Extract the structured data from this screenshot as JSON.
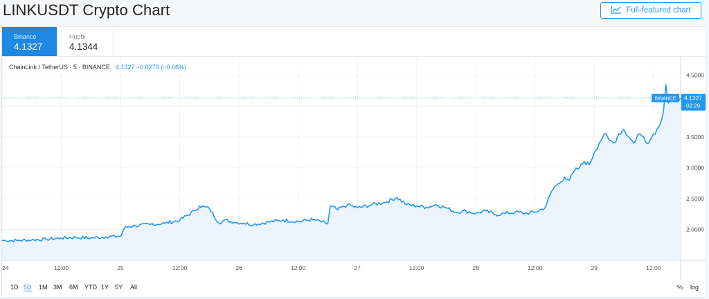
{
  "title": "LINKUSDT Crypto Chart",
  "full_featured_label": "Full-featured chart",
  "tabs": [
    {
      "name": "Binance",
      "price": "4.1327",
      "active": true
    },
    {
      "name": "Huobi",
      "price": "4.1344",
      "active": false
    }
  ],
  "legend": {
    "symbol": "ChainLink / TetherUS · 5 · BINANCE",
    "values": "4.1327  −0.0273 (−0.66%)"
  },
  "price_label": {
    "exchange": "BINANCE",
    "price": "4.1327",
    "countdown": "02:29"
  },
  "colors": {
    "accent": "#2196f3",
    "line": "#2196f3",
    "area": "#eaf4fd"
  },
  "range_buttons": [
    "1D",
    "5D",
    "1M",
    "3M",
    "6M",
    "YTD",
    "1Y",
    "5Y",
    "All"
  ],
  "range_active": "5D",
  "scale_toggles": {
    "percent": "%",
    "log": "log"
  },
  "chart_data": {
    "type": "area",
    "ylim": [
      1.5,
      4.8
    ],
    "y_ticks": [
      "4.5000",
      "4.0000",
      "3.5000",
      "3.0000",
      "2.5000",
      "2.0000"
    ],
    "y_tick_values": [
      4.5,
      4.0,
      3.5,
      3.0,
      2.5,
      2.0
    ],
    "x_ticks": [
      "24",
      "12:00",
      "25",
      "12:00",
      "26",
      "12:00",
      "27",
      "12:00",
      "28",
      "12:00",
      "29",
      "12:00"
    ],
    "x_tick_hours": [
      0,
      12,
      24,
      36,
      48,
      60,
      72,
      84,
      96,
      108,
      120,
      132
    ],
    "x_range_hours": [
      0,
      137.5
    ],
    "series": [
      {
        "hours": [
          0,
          3,
          6,
          9,
          12,
          15,
          18,
          21,
          24,
          25,
          27,
          30,
          33,
          36,
          39,
          40,
          42,
          44,
          45,
          47,
          49,
          51,
          54,
          57,
          60,
          63,
          66,
          66.5,
          68,
          70,
          72,
          75,
          78,
          80,
          82,
          84,
          86,
          88,
          90,
          92,
          94,
          96,
          98,
          100,
          102,
          104,
          106,
          108,
          110,
          111,
          112,
          113,
          114,
          115,
          116,
          117,
          118,
          119,
          120,
          121,
          122,
          123,
          124,
          125,
          126,
          127,
          128,
          129,
          130,
          131,
          132,
          133,
          134,
          134.5,
          135,
          136,
          137,
          137.5
        ],
        "values": [
          1.82,
          1.82,
          1.83,
          1.84,
          1.86,
          1.87,
          1.86,
          1.88,
          1.89,
          2.04,
          2.06,
          2.08,
          2.1,
          2.15,
          2.3,
          2.38,
          2.34,
          2.1,
          2.15,
          2.12,
          2.1,
          2.08,
          2.12,
          2.15,
          2.13,
          2.16,
          2.09,
          2.38,
          2.32,
          2.4,
          2.35,
          2.4,
          2.45,
          2.52,
          2.4,
          2.38,
          2.36,
          2.4,
          2.35,
          2.28,
          2.3,
          2.26,
          2.3,
          2.24,
          2.26,
          2.28,
          2.26,
          2.28,
          2.35,
          2.55,
          2.7,
          2.75,
          2.85,
          2.8,
          2.95,
          3.0,
          3.1,
          3.05,
          3.25,
          3.4,
          3.55,
          3.45,
          3.4,
          3.55,
          3.62,
          3.5,
          3.4,
          3.55,
          3.5,
          3.4,
          3.55,
          3.65,
          3.9,
          4.35,
          4.05,
          4.1,
          4.15,
          4.13
        ]
      }
    ]
  }
}
